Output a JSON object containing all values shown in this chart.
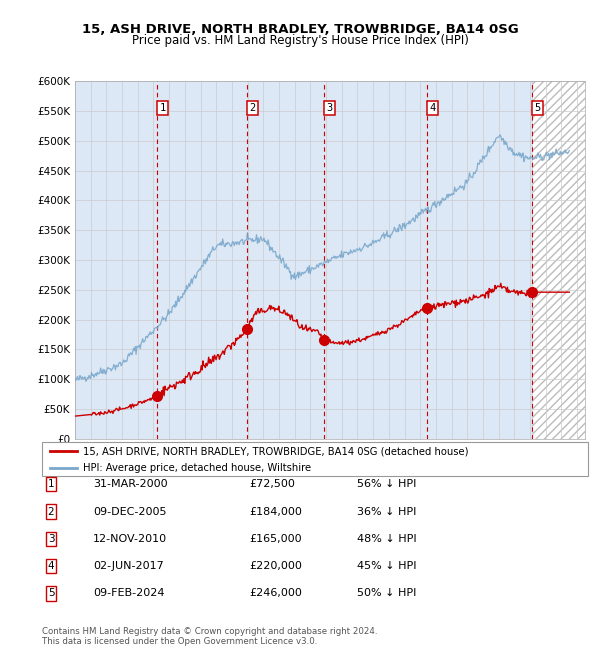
{
  "title": "15, ASH DRIVE, NORTH BRADLEY, TROWBRIDGE, BA14 0SG",
  "subtitle": "Price paid vs. HM Land Registry's House Price Index (HPI)",
  "ylim": [
    0,
    600000
  ],
  "yticks": [
    0,
    50000,
    100000,
    150000,
    200000,
    250000,
    300000,
    350000,
    400000,
    450000,
    500000,
    550000,
    600000
  ],
  "xlim_start": 1995.0,
  "xlim_end": 2027.5,
  "sale_dates": [
    2000.25,
    2005.94,
    2010.87,
    2017.42,
    2024.11
  ],
  "sale_prices": [
    72500,
    184000,
    165000,
    220000,
    246000
  ],
  "sale_labels": [
    "1",
    "2",
    "3",
    "4",
    "5"
  ],
  "vline_color": "#cc0000",
  "sale_marker_color": "#cc0000",
  "hpi_line_color": "#7aa8cc",
  "price_line_color": "#cc0000",
  "background_fill": "#dce8f5",
  "hatched_region_start": 2024.11,
  "hatched_region_end": 2027.5,
  "legend_entry1": "15, ASH DRIVE, NORTH BRADLEY, TROWBRIDGE, BA14 0SG (detached house)",
  "legend_entry2": "HPI: Average price, detached house, Wiltshire",
  "table_data": [
    [
      "1",
      "31-MAR-2000",
      "£72,500",
      "56% ↓ HPI"
    ],
    [
      "2",
      "09-DEC-2005",
      "£184,000",
      "36% ↓ HPI"
    ],
    [
      "3",
      "12-NOV-2010",
      "£165,000",
      "48% ↓ HPI"
    ],
    [
      "4",
      "02-JUN-2017",
      "£220,000",
      "45% ↓ HPI"
    ],
    [
      "5",
      "09-FEB-2024",
      "£246,000",
      "50% ↓ HPI"
    ]
  ],
  "footer1": "Contains HM Land Registry data © Crown copyright and database right 2024.",
  "footer2": "This data is licensed under the Open Government Licence v3.0."
}
